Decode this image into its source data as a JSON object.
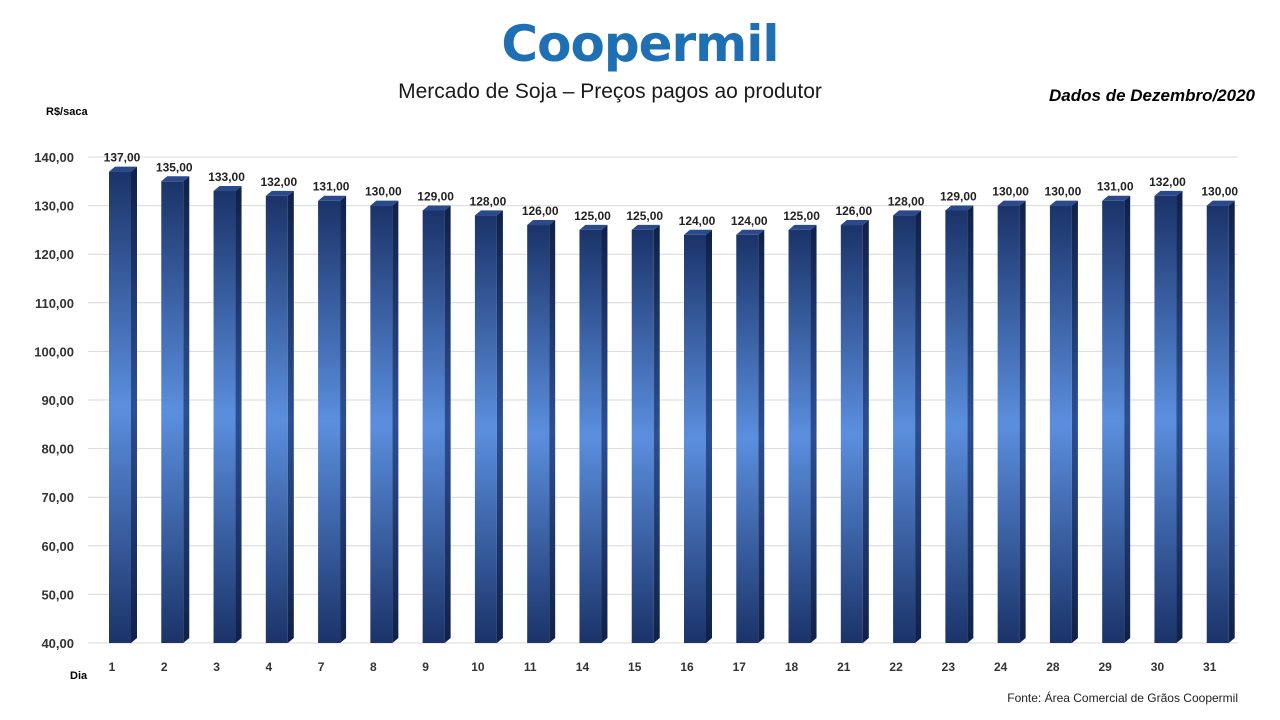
{
  "header": {
    "logo_text": "Coopermil",
    "title": "Mercado de Soja – Preços pagos ao produtor",
    "subtitle": "Dados de Dezembro/2020",
    "source": "Fonte:  Área Comercial de Grãos Coopermil"
  },
  "colors": {
    "bar_dark": "#1b3369",
    "bar_light": "#5b8fde",
    "logo": "#1f6fb4",
    "grid": "#d9d9d9"
  },
  "chart_data": {
    "type": "bar",
    "title": "Mercado de Soja – Preços pagos ao produtor",
    "ylabel": "R$/saca",
    "xlabel": "Dia",
    "ylim": [
      40,
      140
    ],
    "yticks": [
      "40,00",
      "50,00",
      "60,00",
      "70,00",
      "80,00",
      "90,00",
      "100,00",
      "110,00",
      "120,00",
      "130,00",
      "140,00"
    ],
    "grid": true,
    "categories": [
      "1",
      "2",
      "3",
      "4",
      "7",
      "8",
      "9",
      "10",
      "11",
      "14",
      "15",
      "16",
      "17",
      "18",
      "21",
      "22",
      "23",
      "24",
      "28",
      "29",
      "30",
      "31"
    ],
    "values": [
      137,
      135,
      133,
      132,
      131,
      130,
      129,
      128,
      126,
      125,
      125,
      124,
      124,
      125,
      126,
      128,
      129,
      130,
      130,
      131,
      132,
      130
    ],
    "data_labels": [
      "137,00",
      "135,00",
      "133,00",
      "132,00",
      "131,00",
      "130,00",
      "129,00",
      "128,00",
      "126,00",
      "125,00",
      "125,00",
      "124,00",
      "124,00",
      "125,00",
      "126,00",
      "128,00",
      "129,00",
      "130,00",
      "130,00",
      "131,00",
      "132,00",
      "130,00"
    ]
  }
}
